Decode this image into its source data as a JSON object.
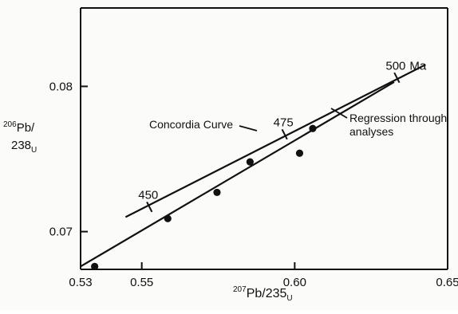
{
  "chart_data": {
    "type": "scatter",
    "title": "",
    "xlabel_parts": {
      "sup": "207",
      "main": "Pb/235",
      "sub": "U"
    },
    "ylabel_parts": {
      "line1_sup": "206",
      "line1_main": "Pb/",
      "line2_main": "238",
      "line2_sub": "U"
    },
    "xlim": [
      0.53,
      0.65
    ],
    "ylim": [
      0.0674,
      0.0854
    ],
    "x_ticks": [
      0.53,
      0.55,
      0.6,
      0.65
    ],
    "x_tick_labels": [
      "0.53",
      "0.55",
      "0.60",
      "0.65"
    ],
    "y_ticks": [
      0.07,
      0.08
    ],
    "y_tick_labels": [
      "0.07",
      "0.08"
    ],
    "grid": false,
    "series": [
      {
        "name": "Concordia Curve",
        "kind": "line",
        "x": [
          0.5447,
          0.6428
        ],
        "y": [
          0.071,
          0.0815
        ]
      },
      {
        "name": "Regression through analyses",
        "kind": "line",
        "x": [
          0.53,
          0.6325
        ],
        "y": [
          0.0676,
          0.0803
        ]
      },
      {
        "name": "analyses",
        "kind": "points",
        "x": [
          0.5346,
          0.5585,
          0.5746,
          0.5854,
          0.6016,
          0.6059
        ],
        "y": [
          0.0676,
          0.0709,
          0.0727,
          0.0748,
          0.0754,
          0.0771
        ]
      }
    ],
    "annotations": {
      "concordia_ticks": [
        {
          "label": "450",
          "x": 0.5525,
          "y": 0.0717
        },
        {
          "label": "475",
          "x": 0.5967,
          "y": 0.0767
        },
        {
          "label": "500",
          "x": 0.6334,
          "y": 0.0806
        }
      ],
      "ma_unit": "Ma",
      "concordia_label": "Concordia Curve",
      "regression_label_lines": [
        "Regression through",
        "analyses"
      ]
    }
  }
}
